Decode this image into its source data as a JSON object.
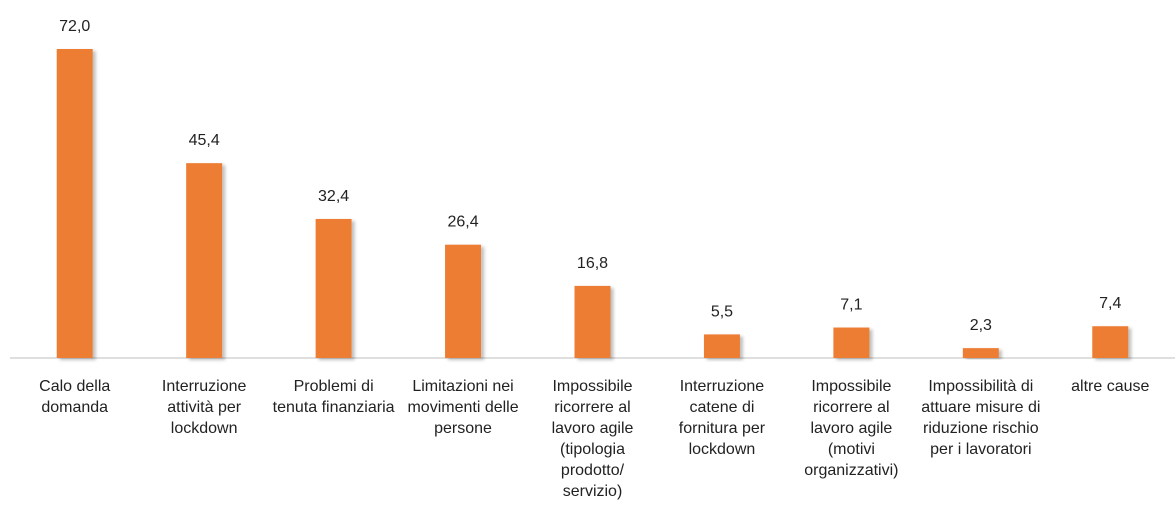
{
  "chart_data": {
    "type": "bar",
    "categories": [
      "Calo della domanda",
      "Interruzione attività per lockdown",
      "Problemi di tenuta finanziaria",
      "Limitazioni nei movimenti delle persone",
      "Impossibile ricorrere al lavoro agile (tipologia prodotto/ servizio)",
      "Interruzione catene di fornitura per lockdown",
      "Impossibile ricorrere al lavoro agile (motivi organizzativi)",
      "Impossibilità di attuare misure di riduzione rischio per i lavoratori",
      "altre cause"
    ],
    "values": [
      72.0,
      45.4,
      32.4,
      26.4,
      16.8,
      5.5,
      7.1,
      2.3,
      7.4
    ],
    "value_labels": [
      "72,0",
      "45,4",
      "32,4",
      "26,4",
      "16,8",
      "5,5",
      "7,1",
      "2,3",
      "7,4"
    ],
    "color": "#ed7d31"
  }
}
